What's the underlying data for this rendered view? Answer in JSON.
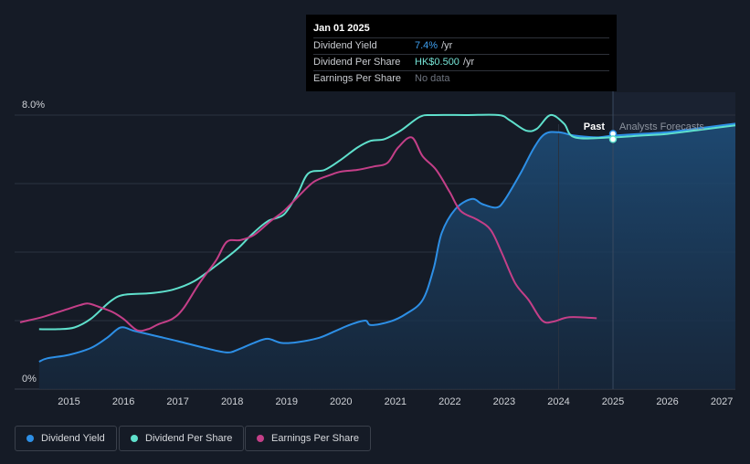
{
  "tooltip": {
    "date": "Jan 01 2025",
    "rows": [
      {
        "label": "Dividend Yield",
        "value": "7.4%",
        "unit": "/yr"
      },
      {
        "label": "Dividend Per Share",
        "value": "HK$0.500",
        "unit": "/yr"
      },
      {
        "label": "Earnings Per Share",
        "value": "No data",
        "unit": ""
      }
    ]
  },
  "legend": {
    "items": [
      {
        "label": "Dividend Yield",
        "color": "#2d8fe6"
      },
      {
        "label": "Dividend Per Share",
        "color": "#5fe0cc"
      },
      {
        "label": "Earnings Per Share",
        "color": "#c43f88"
      }
    ]
  },
  "chart_data": {
    "type": "line",
    "y_top_label": "8.0%",
    "y_bottom_label": "0%",
    "ylim": [
      0,
      8
    ],
    "xlim": [
      2014.0,
      2027.25
    ],
    "x_ticks": [
      "2015",
      "2016",
      "2017",
      "2018",
      "2019",
      "2020",
      "2021",
      "2022",
      "2023",
      "2024",
      "2025",
      "2026",
      "2027"
    ],
    "past_label": "Past",
    "forecast_label": "Analysts Forecasts",
    "divider_x": 2025.0,
    "grid": true,
    "colors": {
      "yield": "#2d8fe6",
      "dps": "#5fe0cc",
      "eps": "#c43f88"
    },
    "series": [
      {
        "name": "Dividend Yield",
        "key": "yield",
        "area": true,
        "points": [
          [
            2014.45,
            0.8
          ],
          [
            2014.6,
            0.9
          ],
          [
            2015.0,
            1.0
          ],
          [
            2015.4,
            1.2
          ],
          [
            2015.7,
            1.5
          ],
          [
            2015.95,
            1.8
          ],
          [
            2016.2,
            1.7
          ],
          [
            2016.6,
            1.55
          ],
          [
            2017.0,
            1.4
          ],
          [
            2017.5,
            1.2
          ],
          [
            2017.9,
            1.07
          ],
          [
            2018.1,
            1.15
          ],
          [
            2018.4,
            1.35
          ],
          [
            2018.65,
            1.47
          ],
          [
            2018.9,
            1.35
          ],
          [
            2019.2,
            1.37
          ],
          [
            2019.6,
            1.5
          ],
          [
            2019.9,
            1.7
          ],
          [
            2020.2,
            1.9
          ],
          [
            2020.45,
            2.0
          ],
          [
            2020.55,
            1.87
          ],
          [
            2020.9,
            1.97
          ],
          [
            2021.2,
            2.2
          ],
          [
            2021.5,
            2.6
          ],
          [
            2021.7,
            3.5
          ],
          [
            2021.85,
            4.55
          ],
          [
            2022.1,
            5.25
          ],
          [
            2022.4,
            5.55
          ],
          [
            2022.6,
            5.4
          ],
          [
            2022.85,
            5.3
          ],
          [
            2023.0,
            5.5
          ],
          [
            2023.3,
            6.3
          ],
          [
            2023.55,
            7.05
          ],
          [
            2023.75,
            7.45
          ],
          [
            2024.0,
            7.5
          ],
          [
            2024.3,
            7.4
          ],
          [
            2024.7,
            7.35
          ],
          [
            2025.0,
            7.4
          ],
          [
            2025.5,
            7.45
          ],
          [
            2026.0,
            7.5
          ],
          [
            2026.5,
            7.6
          ],
          [
            2027.0,
            7.7
          ],
          [
            2027.25,
            7.75
          ]
        ]
      },
      {
        "name": "Dividend Per Share",
        "key": "dps",
        "area": false,
        "points": [
          [
            2014.45,
            1.75
          ],
          [
            2014.8,
            1.75
          ],
          [
            2015.1,
            1.8
          ],
          [
            2015.4,
            2.05
          ],
          [
            2015.75,
            2.55
          ],
          [
            2016.0,
            2.75
          ],
          [
            2016.5,
            2.8
          ],
          [
            2016.9,
            2.9
          ],
          [
            2017.3,
            3.15
          ],
          [
            2017.7,
            3.6
          ],
          [
            2018.1,
            4.1
          ],
          [
            2018.35,
            4.5
          ],
          [
            2018.65,
            4.9
          ],
          [
            2018.95,
            5.1
          ],
          [
            2019.2,
            5.7
          ],
          [
            2019.4,
            6.3
          ],
          [
            2019.7,
            6.4
          ],
          [
            2020.0,
            6.7
          ],
          [
            2020.3,
            7.05
          ],
          [
            2020.55,
            7.25
          ],
          [
            2020.8,
            7.3
          ],
          [
            2021.1,
            7.55
          ],
          [
            2021.45,
            7.95
          ],
          [
            2021.7,
            8.0
          ],
          [
            2022.3,
            8.0
          ],
          [
            2022.9,
            8.0
          ],
          [
            2023.1,
            7.85
          ],
          [
            2023.4,
            7.55
          ],
          [
            2023.6,
            7.6
          ],
          [
            2023.85,
            8.0
          ],
          [
            2024.1,
            7.75
          ],
          [
            2024.3,
            7.35
          ],
          [
            2025.0,
            7.35
          ],
          [
            2025.5,
            7.4
          ],
          [
            2026.0,
            7.45
          ],
          [
            2026.5,
            7.55
          ],
          [
            2027.0,
            7.65
          ],
          [
            2027.25,
            7.7
          ]
        ]
      },
      {
        "name": "Earnings Per Share",
        "key": "eps",
        "area": false,
        "points": [
          [
            2014.1,
            1.95
          ],
          [
            2014.5,
            2.1
          ],
          [
            2014.9,
            2.3
          ],
          [
            2015.2,
            2.45
          ],
          [
            2015.35,
            2.5
          ],
          [
            2015.55,
            2.4
          ],
          [
            2015.8,
            2.25
          ],
          [
            2016.0,
            2.05
          ],
          [
            2016.25,
            1.72
          ],
          [
            2016.45,
            1.75
          ],
          [
            2016.65,
            1.9
          ],
          [
            2016.9,
            2.05
          ],
          [
            2017.1,
            2.35
          ],
          [
            2017.4,
            3.1
          ],
          [
            2017.7,
            3.75
          ],
          [
            2017.9,
            4.3
          ],
          [
            2018.15,
            4.35
          ],
          [
            2018.4,
            4.5
          ],
          [
            2018.7,
            4.9
          ],
          [
            2018.95,
            5.2
          ],
          [
            2019.2,
            5.6
          ],
          [
            2019.5,
            6.05
          ],
          [
            2019.8,
            6.25
          ],
          [
            2020.0,
            6.35
          ],
          [
            2020.3,
            6.4
          ],
          [
            2020.6,
            6.5
          ],
          [
            2020.85,
            6.6
          ],
          [
            2021.05,
            7.05
          ],
          [
            2021.3,
            7.35
          ],
          [
            2021.5,
            6.8
          ],
          [
            2021.75,
            6.4
          ],
          [
            2022.0,
            5.75
          ],
          [
            2022.2,
            5.2
          ],
          [
            2022.5,
            4.95
          ],
          [
            2022.75,
            4.65
          ],
          [
            2022.95,
            4.0
          ],
          [
            2023.2,
            3.1
          ],
          [
            2023.45,
            2.6
          ],
          [
            2023.7,
            2.0
          ],
          [
            2023.9,
            1.97
          ],
          [
            2024.2,
            2.1
          ],
          [
            2024.7,
            2.07
          ]
        ]
      }
    ]
  }
}
